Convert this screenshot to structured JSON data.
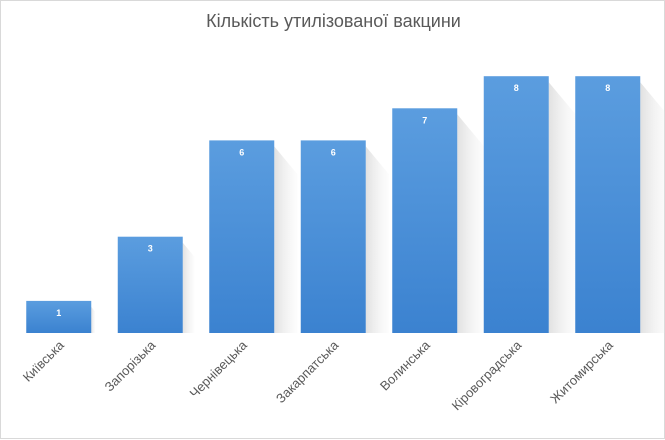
{
  "chart_data": {
    "type": "bar",
    "title": "Кількість утилізованої вакцини",
    "xlabel": "",
    "ylabel": "",
    "categories": [
      "Київська",
      "Запорізька",
      "Чернівецька",
      "Закарпатська",
      "Волинська",
      "Кіровоградська",
      "Житомирська"
    ],
    "values": [
      1,
      3,
      6,
      6,
      7,
      8,
      8
    ],
    "ylim": [
      0,
      8
    ],
    "grid": false,
    "legend": "none",
    "data_labels": true,
    "bar_color": "#4a90d9",
    "bar_gradient": [
      "#5b9ddf",
      "#3b82d0"
    ]
  }
}
